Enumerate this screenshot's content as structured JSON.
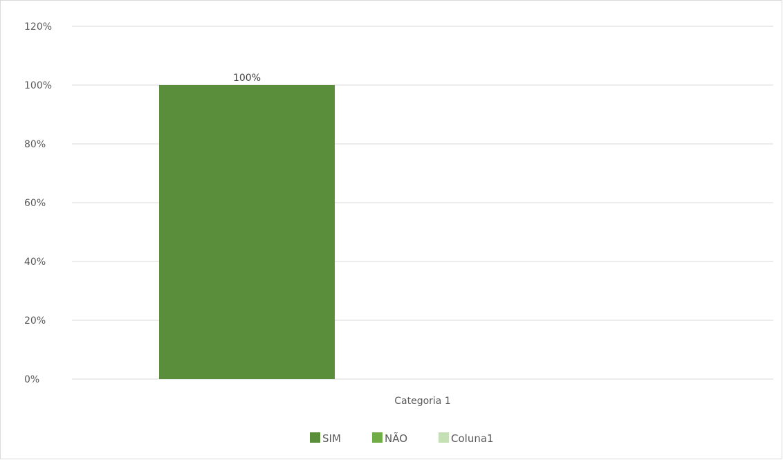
{
  "chart_data": {
    "type": "bar",
    "categories": [
      "Categoria 1"
    ],
    "series": [
      {
        "name": "SIM",
        "values": [
          100
        ],
        "color": "#5b8e3b"
      },
      {
        "name": "NÃO",
        "values": [
          0
        ],
        "color": "#70ad47"
      },
      {
        "name": "Coluna1",
        "values": [
          0
        ],
        "color": "#c5e0b4"
      }
    ],
    "ylim": [
      0,
      120
    ],
    "y_ticks": [
      "0%",
      "20%",
      "40%",
      "60%",
      "80%",
      "100%",
      "120%"
    ],
    "data_labels": [
      "100%"
    ],
    "grid": true,
    "legend_position": "bottom",
    "gridline_color": "#d9d9d9",
    "axis_text_color": "#595959"
  }
}
